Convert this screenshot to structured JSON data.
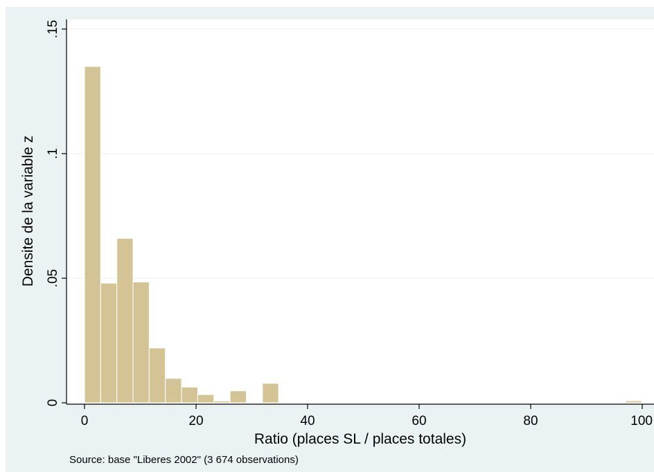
{
  "chart_data": {
    "type": "bar",
    "xlabel": "Ratio (places SL / places totales)",
    "ylabel": "Densite de la variable z",
    "note": "Source: base \"Liberes 2002\" (3 674 observations)",
    "xlim": [
      -2,
      101
    ],
    "ylim": [
      0,
      0.155
    ],
    "xticks": [
      {
        "value": 0,
        "label": "0"
      },
      {
        "value": 20,
        "label": "20"
      },
      {
        "value": 40,
        "label": "40"
      },
      {
        "value": 60,
        "label": "60"
      },
      {
        "value": 80,
        "label": "80"
      },
      {
        "value": 100,
        "label": "100"
      }
    ],
    "yticks": [
      {
        "value": 0,
        "label": "0"
      },
      {
        "value": 0.05,
        "label": ".05"
      },
      {
        "value": 0.1,
        "label": ".1"
      },
      {
        "value": 0.15,
        "label": ".15"
      }
    ],
    "bin_width": 2.9,
    "bins": [
      {
        "start": 0.0,
        "density": 0.135
      },
      {
        "start": 2.9,
        "density": 0.048
      },
      {
        "start": 5.8,
        "density": 0.066
      },
      {
        "start": 8.7,
        "density": 0.0485
      },
      {
        "start": 11.6,
        "density": 0.022
      },
      {
        "start": 14.5,
        "density": 0.0098
      },
      {
        "start": 17.4,
        "density": 0.0063
      },
      {
        "start": 20.3,
        "density": 0.0033
      },
      {
        "start": 23.2,
        "density": 0.0007
      },
      {
        "start": 26.1,
        "density": 0.0048
      },
      {
        "start": 29.0,
        "density": 0.0
      },
      {
        "start": 31.9,
        "density": 0.0078
      },
      {
        "start": 97.0,
        "density": 0.0008
      }
    ],
    "bar_color": "#d4c495",
    "background_color": "#eaf2f3",
    "grid": true
  }
}
